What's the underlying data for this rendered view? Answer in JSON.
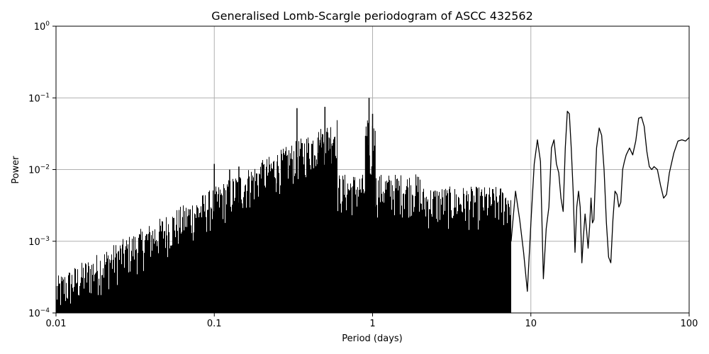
{
  "chart_data": {
    "type": "line",
    "title": "Generalised Lomb-Scargle periodogram of ASCC 432562",
    "xlabel": "Period (days)",
    "ylabel": "Power",
    "xscale": "log",
    "yscale": "log",
    "xlim": [
      0.01,
      100
    ],
    "ylim": [
      0.0001,
      1
    ],
    "grid": true,
    "x_ticks": [
      {
        "value": 0.01,
        "label": "0.01"
      },
      {
        "value": 0.1,
        "label": "0.1"
      },
      {
        "value": 1,
        "label": "1"
      },
      {
        "value": 10,
        "label": "10"
      },
      {
        "value": 100,
        "label": "100"
      }
    ],
    "y_ticks": [
      {
        "value": 0.0001,
        "base": "10",
        "exp": "−4"
      },
      {
        "value": 0.001,
        "base": "10",
        "exp": "−3"
      },
      {
        "value": 0.01,
        "base": "10",
        "exp": "−2"
      },
      {
        "value": 0.1,
        "base": "10",
        "exp": "−1"
      },
      {
        "value": 1,
        "base": "10",
        "exp": "0"
      }
    ],
    "line_color": "#000000",
    "peaks": [
      {
        "period": 0.333,
        "power": 0.072
      },
      {
        "period": 0.5,
        "power": 0.075
      },
      {
        "period": 0.25,
        "power": 0.013
      },
      {
        "period": 0.2,
        "power": 0.0125
      },
      {
        "period": 0.143,
        "power": 0.011
      },
      {
        "period": 0.1,
        "power": 0.012
      },
      {
        "period": 0.125,
        "power": 0.01
      },
      {
        "period": 0.166,
        "power": 0.008
      },
      {
        "period": 0.95,
        "power": 0.1
      },
      {
        "period": 1.0,
        "power": 0.06
      }
    ],
    "series": [
      {
        "x": [
          7.5,
          8.0,
          8.5,
          9.0,
          9.5,
          10.0,
          10.5,
          11.0,
          11.5,
          12.0,
          12.5,
          13.0,
          13.5,
          14.0,
          14.5,
          15.0,
          15.5,
          16.0,
          16.5,
          17.0,
          17.5,
          18.0,
          18.5,
          19.0,
          19.5,
          20.0,
          20.5,
          21.0,
          21.5,
          22.0,
          22.5,
          23.0,
          23.5,
          24.0,
          24.5,
          25.0,
          26.0,
          27.0,
          28.0,
          29.0,
          30.0,
          31.0,
          32.0,
          33.0,
          34.0,
          35.0,
          36.0,
          37.0,
          38.0,
          39.0,
          40.0,
          42.0,
          44.0,
          46.0,
          48.0,
          50.0,
          52.0,
          54.0,
          56.0,
          58.0,
          60.0,
          63.0,
          66.0,
          69.0,
          72.0,
          75.0,
          80.0,
          85.0,
          90.0,
          95.0,
          100.0
        ],
        "y": [
          0.001,
          0.005,
          0.002,
          0.0007,
          0.0002,
          0.0018,
          0.012,
          0.026,
          0.013,
          0.0003,
          0.0015,
          0.003,
          0.02,
          0.026,
          0.012,
          0.009,
          0.004,
          0.0026,
          0.02,
          0.065,
          0.06,
          0.02,
          0.005,
          0.0007,
          0.003,
          0.005,
          0.003,
          0.0005,
          0.0012,
          0.0024,
          0.0014,
          0.0008,
          0.0016,
          0.004,
          0.0018,
          0.002,
          0.02,
          0.038,
          0.03,
          0.01,
          0.0018,
          0.0006,
          0.0005,
          0.002,
          0.005,
          0.0045,
          0.003,
          0.0035,
          0.01,
          0.013,
          0.016,
          0.02,
          0.016,
          0.025,
          0.052,
          0.054,
          0.04,
          0.018,
          0.011,
          0.01,
          0.011,
          0.01,
          0.006,
          0.004,
          0.0045,
          0.009,
          0.017,
          0.025,
          0.026,
          0.025,
          0.028
        ]
      }
    ]
  }
}
